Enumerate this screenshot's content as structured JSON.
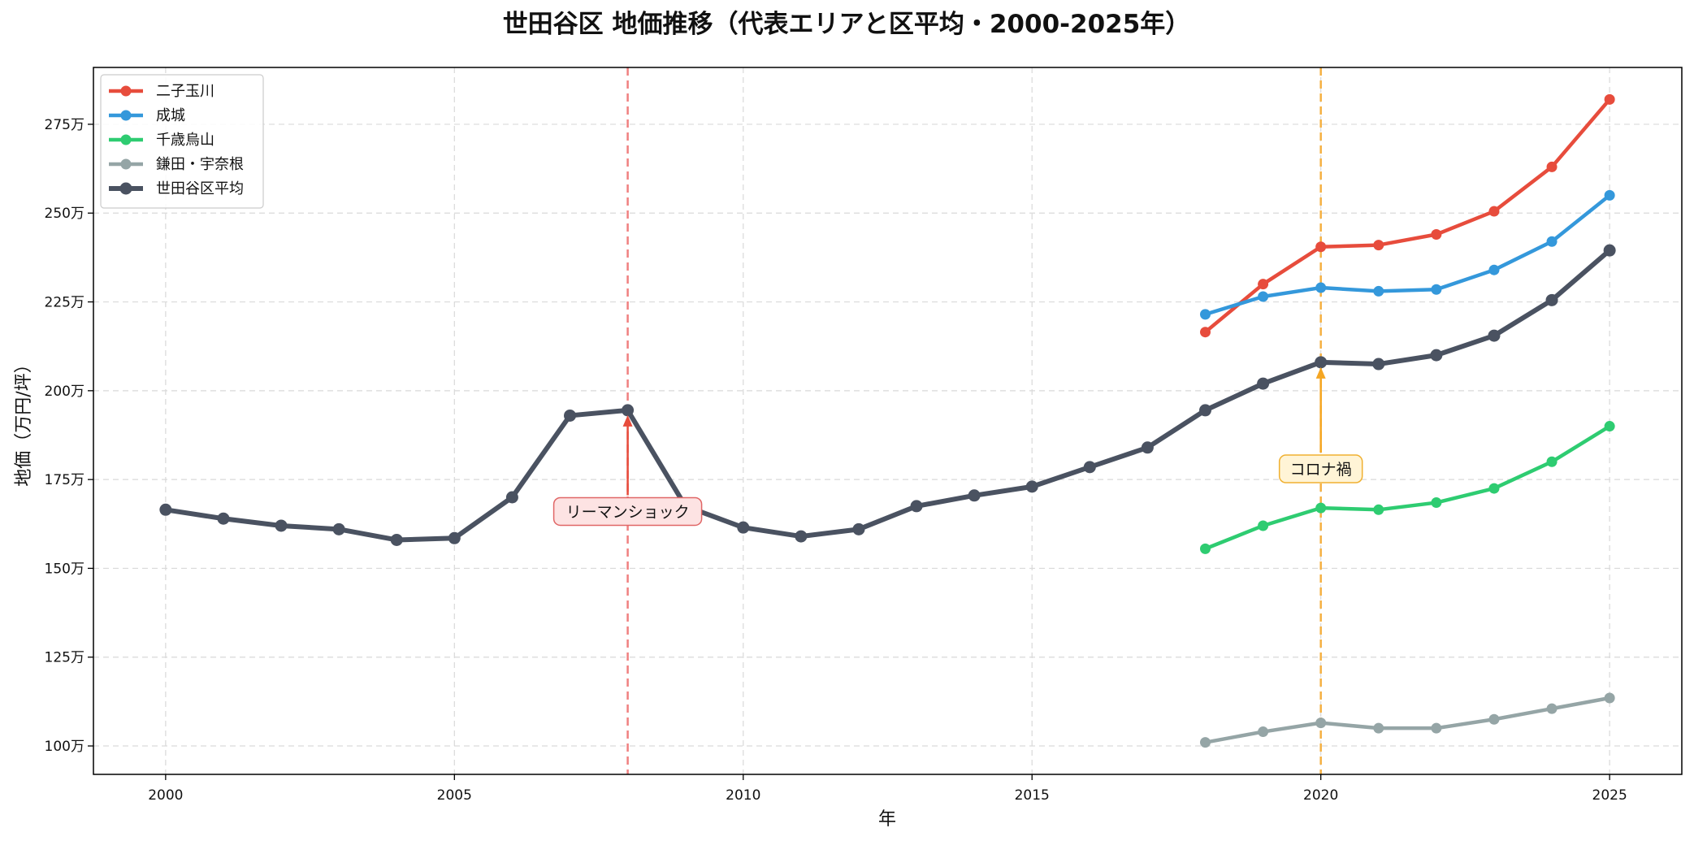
{
  "chart_data": {
    "type": "line",
    "title": "世田谷区 地価推移（代表エリアと区平均・2000-2025年）",
    "xlabel": "年",
    "ylabel": "地価（万円/坪）",
    "xlim": [
      1998.75,
      2026.25
    ],
    "ylim": [
      92,
      291
    ],
    "x_ticks": [
      2000,
      2005,
      2010,
      2015,
      2020,
      2025
    ],
    "y_ticks": [
      100,
      125,
      150,
      175,
      200,
      225,
      250,
      275
    ],
    "y_tick_labels": [
      "100万",
      "125万",
      "150万",
      "175万",
      "200万",
      "225万",
      "250万",
      "275万"
    ],
    "grid": true,
    "legend_position": "top-left",
    "series": [
      {
        "name": "二子玉川",
        "color": "#e74c3c",
        "x": [
          2018,
          2019,
          2020,
          2021,
          2022,
          2023,
          2024,
          2025
        ],
        "values": [
          216.5,
          230,
          240.5,
          241,
          244,
          250.5,
          263,
          282
        ]
      },
      {
        "name": "成城",
        "color": "#3498db",
        "x": [
          2018,
          2019,
          2020,
          2021,
          2022,
          2023,
          2024,
          2025
        ],
        "values": [
          221.5,
          226.5,
          229,
          228,
          228.5,
          234,
          242,
          255
        ]
      },
      {
        "name": "千歳烏山",
        "color": "#2ecc71",
        "x": [
          2018,
          2019,
          2020,
          2021,
          2022,
          2023,
          2024,
          2025
        ],
        "values": [
          155.5,
          162,
          167,
          166.5,
          168.5,
          172.5,
          180,
          190
        ]
      },
      {
        "name": "鎌田・宇奈根",
        "color": "#95a5a6",
        "x": [
          2018,
          2019,
          2020,
          2021,
          2022,
          2023,
          2024,
          2025
        ],
        "values": [
          101,
          104,
          106.5,
          105,
          105,
          107.5,
          110.5,
          113.5
        ]
      },
      {
        "name": "世田谷区平均",
        "color": "#4a5261",
        "x": [
          2000,
          2001,
          2002,
          2003,
          2004,
          2005,
          2006,
          2007,
          2008,
          2009,
          2010,
          2011,
          2012,
          2013,
          2014,
          2015,
          2016,
          2017,
          2018,
          2019,
          2020,
          2021,
          2022,
          2023,
          2024,
          2025
        ],
        "values": [
          166.5,
          164,
          162,
          161,
          158,
          158.5,
          170,
          193,
          194.5,
          167.5,
          161.5,
          159,
          161,
          167.5,
          170.5,
          173,
          178.5,
          184,
          194.5,
          202,
          208,
          207.5,
          210,
          215.5,
          225.5,
          239.5
        ]
      }
    ],
    "annotations": [
      {
        "text": "リーマンショック",
        "x": 2008,
        "y": 194.5,
        "text_x": 2008,
        "text_y": 166,
        "color": "#e74c3c",
        "box_fill": "#fde3e3",
        "box_edge": "#e06666"
      },
      {
        "text": "コロナ禍",
        "x": 2020,
        "y": 208,
        "text_x": 2020,
        "text_y": 178,
        "color": "#f5a623",
        "box_fill": "#fff4d6",
        "box_edge": "#f0b030"
      }
    ],
    "vlines": [
      {
        "x": 2008,
        "color": "#f08080"
      },
      {
        "x": 2020,
        "color": "#f5b041"
      }
    ]
  }
}
